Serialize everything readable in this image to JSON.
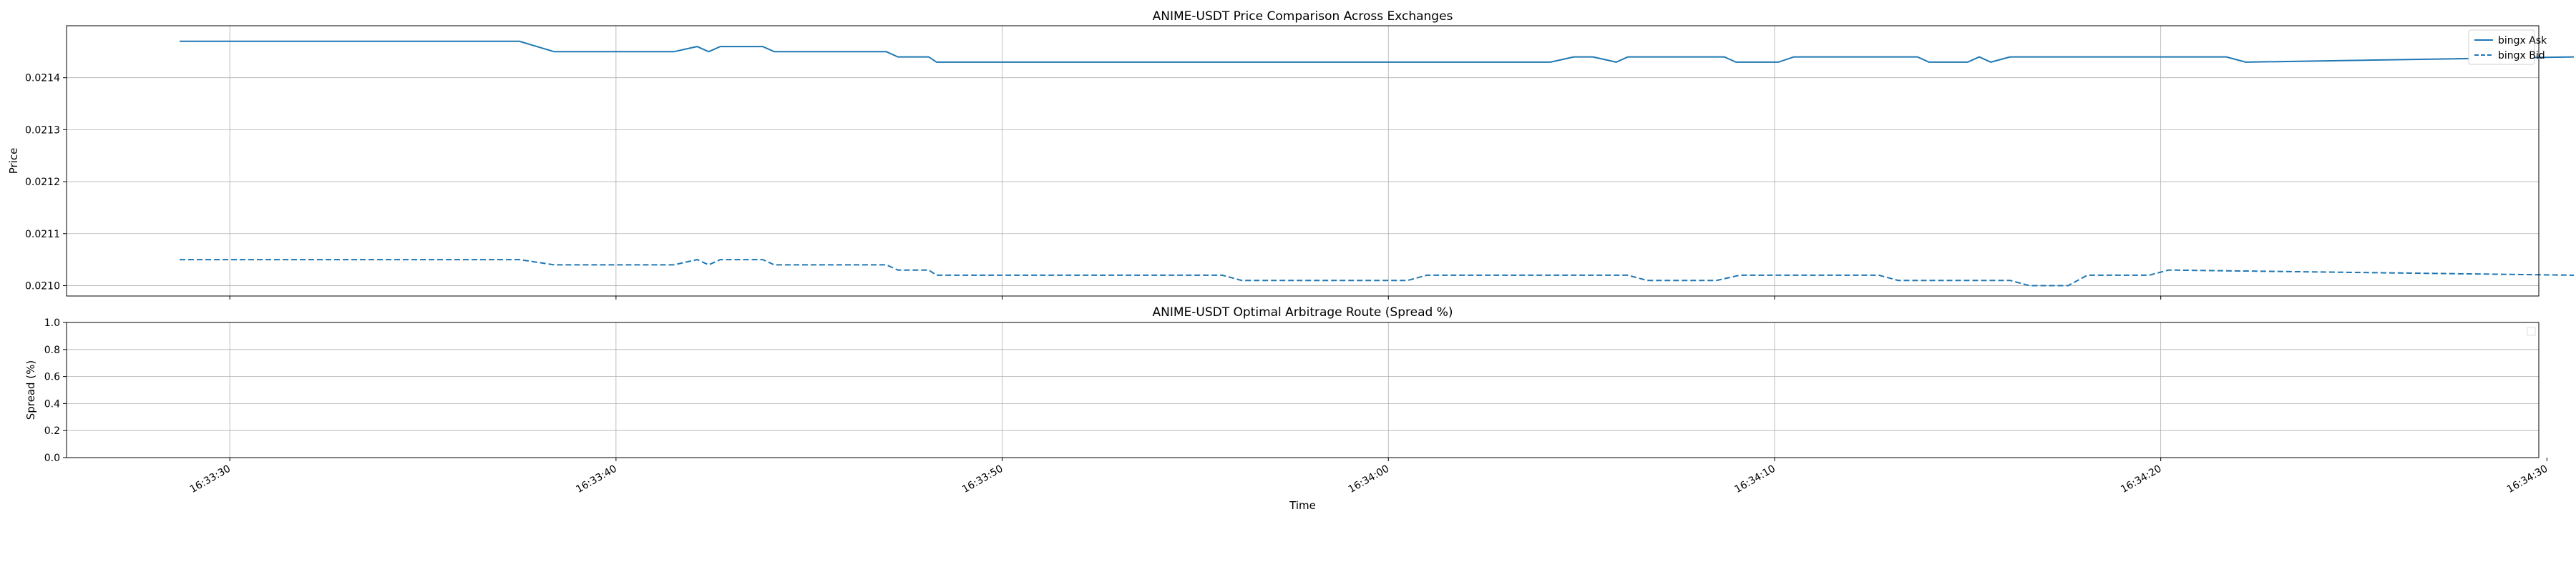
{
  "chart_data": [
    {
      "type": "line",
      "title": "ANIME-USDT Price Comparison Across Exchanges",
      "xlabel": "",
      "ylabel": "Price",
      "ylim": [
        0.02098,
        0.0215
      ],
      "yticks": [
        "0.0210",
        "0.0211",
        "0.0212",
        "0.0213",
        "0.0214"
      ],
      "ytick_values": [
        0.021,
        0.0211,
        0.0212,
        0.0213,
        0.0214
      ],
      "xlim_seconds": [
        0,
        63
      ],
      "grid": true,
      "legend_position": "top-right",
      "series": [
        {
          "name": "bingx Ask",
          "style": "solid",
          "color": "#1f77b4",
          "t": [
            0,
            8.8,
            9.7,
            12.8,
            13.4,
            13.7,
            14.0,
            15.1,
            15.4,
            18.3,
            18.6,
            19.4,
            19.6,
            35.5,
            36.1,
            36.6,
            37.2,
            37.5,
            40.0,
            40.3,
            41.4,
            41.8,
            45.0,
            45.3,
            46.3,
            46.6,
            46.9,
            47.4,
            53.0,
            53.5,
            62.0
          ],
          "values": [
            0.02147,
            0.02147,
            0.02145,
            0.02145,
            0.02146,
            0.02145,
            0.02146,
            0.02146,
            0.02145,
            0.02145,
            0.02144,
            0.02144,
            0.02143,
            0.02143,
            0.02144,
            0.02144,
            0.02143,
            0.02144,
            0.02144,
            0.02143,
            0.02143,
            0.02144,
            0.02144,
            0.02143,
            0.02143,
            0.02144,
            0.02143,
            0.02144,
            0.02144,
            0.02143,
            0.02144
          ]
        },
        {
          "name": "bingx Bid",
          "style": "dashed",
          "color": "#1f77b4",
          "t": [
            0,
            8.8,
            9.7,
            12.8,
            13.4,
            13.7,
            14.0,
            15.1,
            15.4,
            18.3,
            18.6,
            19.4,
            19.6,
            27.0,
            27.5,
            31.8,
            32.3,
            37.5,
            38.0,
            39.8,
            40.4,
            44.0,
            44.5,
            47.4,
            47.9,
            48.9,
            49.4,
            51.0,
            51.5,
            62.0
          ],
          "values": [
            0.02105,
            0.02105,
            0.02104,
            0.02104,
            0.02105,
            0.02104,
            0.02105,
            0.02105,
            0.02104,
            0.02104,
            0.02103,
            0.02103,
            0.02102,
            0.02102,
            0.02101,
            0.02101,
            0.02102,
            0.02102,
            0.02101,
            0.02101,
            0.02102,
            0.02102,
            0.02101,
            0.02101,
            0.021,
            0.021,
            0.02102,
            0.02102,
            0.02103,
            0.02102
          ]
        }
      ]
    },
    {
      "type": "line",
      "title": "ANIME-USDT Optimal Arbitrage Route (Spread %)",
      "xlabel": "Time",
      "ylabel": "Spread (%)",
      "ylim": [
        0.0,
        1.0
      ],
      "yticks": [
        "0.0",
        "0.2",
        "0.4",
        "0.6",
        "0.8",
        "1.0"
      ],
      "ytick_values": [
        0.0,
        0.2,
        0.4,
        0.6,
        0.8,
        1.0
      ],
      "xticks": [
        "16:33:30",
        "16:33:40",
        "16:33:50",
        "16:34:00",
        "16:34:10",
        "16:34:20",
        "16:34:30"
      ],
      "grid": true,
      "legend_position": "top-right",
      "series": []
    }
  ],
  "x_axis": {
    "first_tick_seconds": 1.3,
    "tick_step_seconds": 10
  },
  "colors": {
    "line": "#1f77b4",
    "grid": "#b0b0b0",
    "axes": "#000000"
  }
}
